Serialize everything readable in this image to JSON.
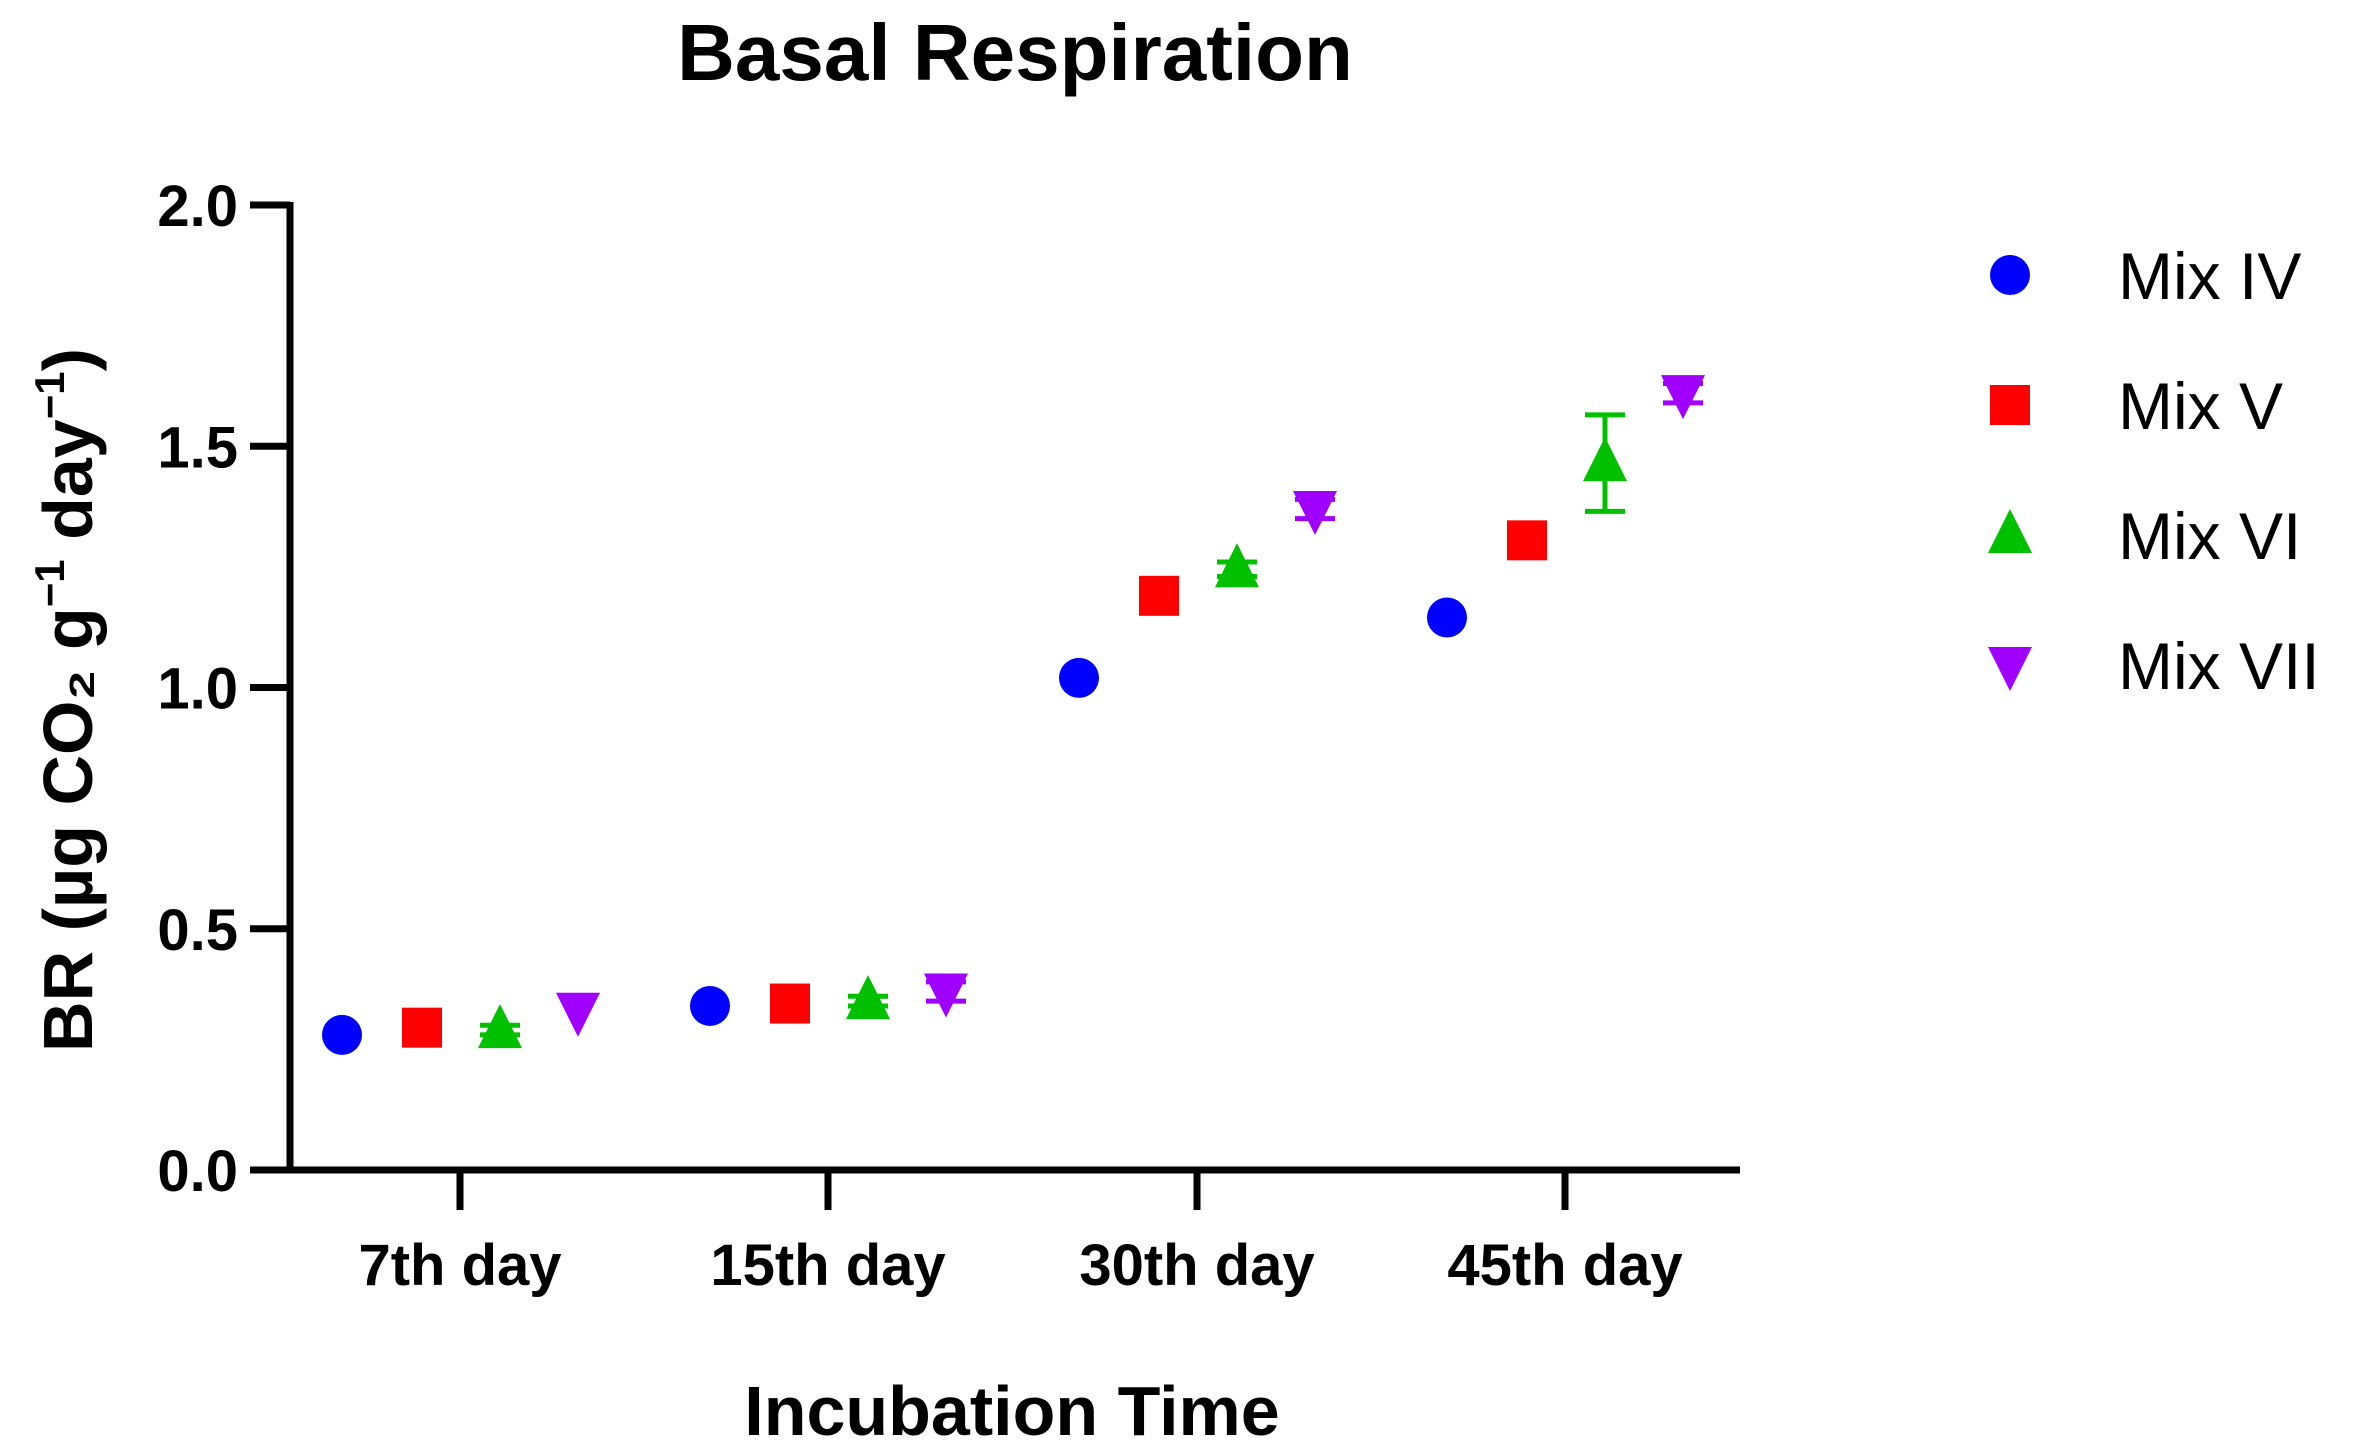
{
  "chart_data": {
    "type": "scatter",
    "title": "Basal Respiration",
    "xlabel": "Incubation Time",
    "ylabel": {
      "prefix": "BR (µg CO₂ g",
      "sup1": "−1",
      "middle": " day",
      "sup2": "−1",
      "suffix": ")"
    },
    "categories": [
      "7th day",
      "15th day",
      "30th day",
      "45th day"
    ],
    "ylim": [
      0,
      2.0
    ],
    "yticks": [
      "0.0",
      "0.5",
      "1.0",
      "1.5",
      "2.0"
    ],
    "legend_position": "right",
    "series": [
      {
        "name": "Mix IV",
        "marker": "circle",
        "color": "#0000ff",
        "values": [
          0.28,
          0.34,
          1.02,
          1.145
        ],
        "errors": [
          0.0,
          0.0,
          0.0,
          0.0
        ]
      },
      {
        "name": "Mix V",
        "marker": "square",
        "color": "#ff0000",
        "values": [
          0.295,
          0.345,
          1.19,
          1.305
        ],
        "errors": [
          0.0,
          0.0,
          0.0,
          0.0
        ]
      },
      {
        "name": "Mix VI",
        "marker": "triangle-up",
        "color": "#00c000",
        "values": [
          0.29,
          0.35,
          1.245,
          1.465
        ],
        "errors": [
          0.01,
          0.01,
          0.015,
          0.1
        ]
      },
      {
        "name": "Mix VII",
        "marker": "triangle-down",
        "color": "#a000ff",
        "values": [
          0.33,
          0.37,
          1.37,
          1.61
        ],
        "errors": [
          0.0,
          0.02,
          0.02,
          0.02
        ]
      }
    ]
  }
}
